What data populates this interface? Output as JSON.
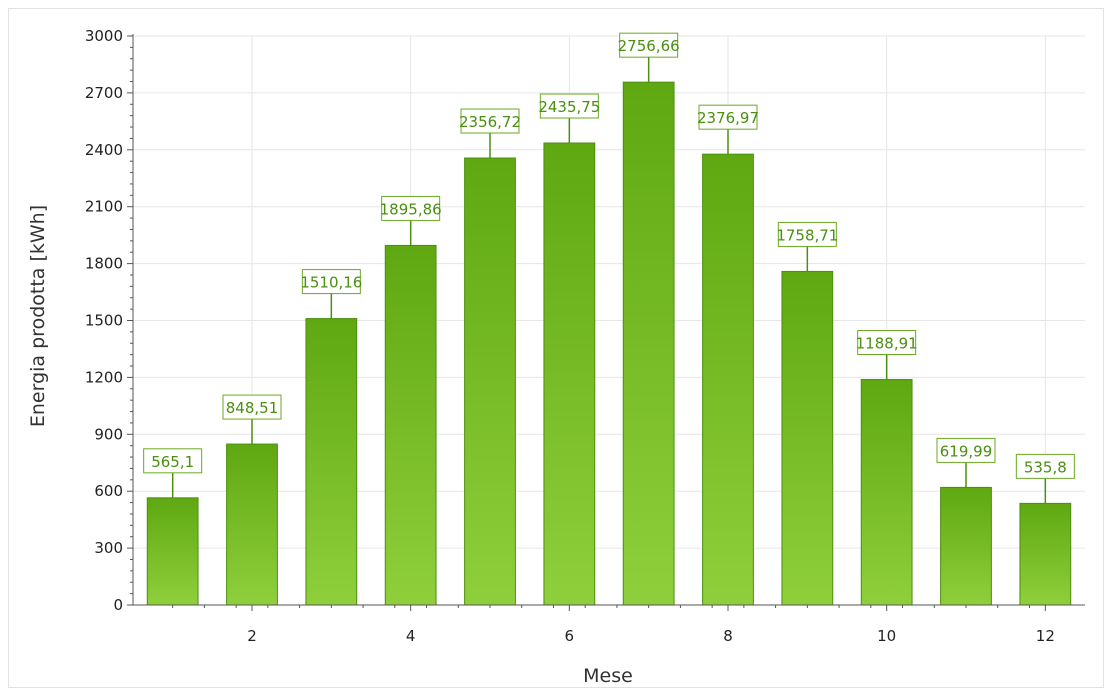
{
  "chart_data": {
    "type": "bar",
    "xlabel": "Mese",
    "ylabel": "Energia prodotta [kWh]",
    "categories": [
      1,
      2,
      3,
      4,
      5,
      6,
      7,
      8,
      9,
      10,
      11,
      12
    ],
    "values": [
      565.1,
      848.51,
      1510.16,
      1895.86,
      2356.72,
      2435.75,
      2756.66,
      2376.97,
      1758.71,
      1188.91,
      619.99,
      535.8
    ],
    "data_labels": [
      "565,1",
      "848,51",
      "1510,16",
      "1895,86",
      "2356,72",
      "2435,75",
      "2756,66",
      "2376,97",
      "1758,71",
      "1188,91",
      "619,99",
      "535,8"
    ],
    "x_ticks": [
      2,
      4,
      6,
      8,
      10,
      12
    ],
    "y_ticks": [
      0,
      300,
      600,
      900,
      1200,
      1500,
      1800,
      2100,
      2400,
      2700,
      3000
    ],
    "ylim": [
      0,
      3000
    ],
    "xlim": [
      0.5,
      12.5
    ],
    "grid": true,
    "legend": "none",
    "colors": {
      "bar_light": "#8fcf3c",
      "bar_dark": "#5fa812",
      "bar_edge": "#4a8f0e",
      "label_border": "#6aaa22",
      "label_text": "#4a8f10",
      "grid": "#e6e6e6",
      "axis": "#555555"
    }
  }
}
